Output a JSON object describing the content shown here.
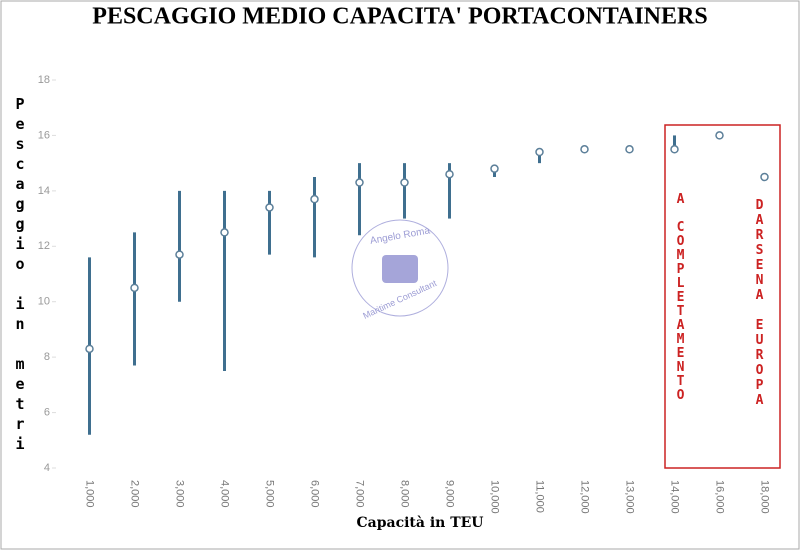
{
  "chart_data": {
    "type": "range",
    "title": "PESCAGGIO MEDIO CAPACITA' PORTACONTAINERS",
    "y_label": "Pescaggio in metri",
    "x_label": "Capacità in TEU",
    "categories": [
      "1,000",
      "2,000",
      "3,000",
      "4,000",
      "5,000",
      "6,000",
      "7,000",
      "8,000",
      "9,000",
      "10,000",
      "11,000",
      "12,000",
      "13,000",
      "14,000",
      "16,000",
      "18,000"
    ],
    "values": [
      8.3,
      10.5,
      11.7,
      12.5,
      13.4,
      13.7,
      14.3,
      14.3,
      14.6,
      14.8,
      15.4,
      15.5,
      15.5,
      15.5,
      16.0,
      14.5
    ],
    "low": [
      5.2,
      7.7,
      10.0,
      7.5,
      11.7,
      11.6,
      12.4,
      13.0,
      13.0,
      14.5,
      15.0,
      null,
      null,
      15.5,
      null,
      null
    ],
    "high": [
      11.6,
      12.5,
      14.0,
      14.0,
      14.0,
      14.5,
      15.0,
      15.0,
      15.0,
      14.9,
      15.3,
      null,
      null,
      16.0,
      null,
      null
    ],
    "color": "#3f6f8f",
    "ylim": [
      4,
      18
    ],
    "yticks": [
      4,
      6,
      8,
      10,
      12,
      14,
      16,
      18
    ],
    "annotations": [
      "A COMPLETAMENTO",
      "DARSENA EUROPA"
    ],
    "watermark": [
      "Angelo Roma",
      "Maritime Consultant"
    ]
  }
}
